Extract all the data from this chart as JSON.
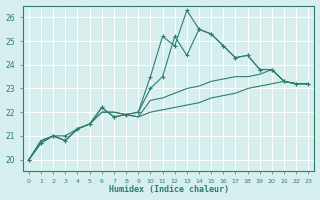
{
  "title": "",
  "xlabel": "Humidex (Indice chaleur)",
  "ylabel": "",
  "background_color": "#d6eeee",
  "grid_color": "#b8d8d8",
  "line_color": "#2e7d6e",
  "xlim": [
    -0.5,
    23.5
  ],
  "ylim": [
    19.5,
    26.5
  ],
  "yticks": [
    20,
    21,
    22,
    23,
    24,
    25,
    26
  ],
  "xticks": [
    0,
    1,
    2,
    3,
    4,
    5,
    6,
    7,
    8,
    9,
    10,
    11,
    12,
    13,
    14,
    15,
    16,
    17,
    18,
    19,
    20,
    21,
    22,
    23
  ],
  "series": [
    {
      "y": [
        20.0,
        20.7,
        21.0,
        21.0,
        21.3,
        21.5,
        22.2,
        21.8,
        21.9,
        22.0,
        23.5,
        25.2,
        24.8,
        26.3,
        25.5,
        25.3,
        24.8,
        24.3,
        24.4,
        23.8,
        23.8,
        23.3,
        23.2,
        23.2
      ],
      "marker": true
    },
    {
      "y": [
        20.0,
        20.7,
        21.0,
        20.8,
        21.3,
        21.5,
        22.2,
        21.8,
        21.9,
        22.0,
        23.0,
        23.5,
        25.2,
        24.4,
        25.5,
        25.3,
        24.8,
        24.3,
        24.4,
        23.8,
        23.8,
        23.3,
        23.2,
        23.2
      ],
      "marker": true
    },
    {
      "y": [
        20.0,
        20.8,
        21.0,
        20.8,
        21.3,
        21.5,
        22.0,
        22.0,
        21.9,
        21.8,
        22.5,
        22.6,
        22.8,
        23.0,
        23.1,
        23.3,
        23.4,
        23.5,
        23.5,
        23.6,
        23.8,
        23.3,
        23.2,
        23.2
      ],
      "marker": false
    },
    {
      "y": [
        20.0,
        20.8,
        21.0,
        20.8,
        21.3,
        21.5,
        22.0,
        22.0,
        21.9,
        21.8,
        22.0,
        22.1,
        22.2,
        22.3,
        22.4,
        22.6,
        22.7,
        22.8,
        23.0,
        23.1,
        23.2,
        23.3,
        23.2,
        23.2
      ],
      "marker": false
    }
  ]
}
